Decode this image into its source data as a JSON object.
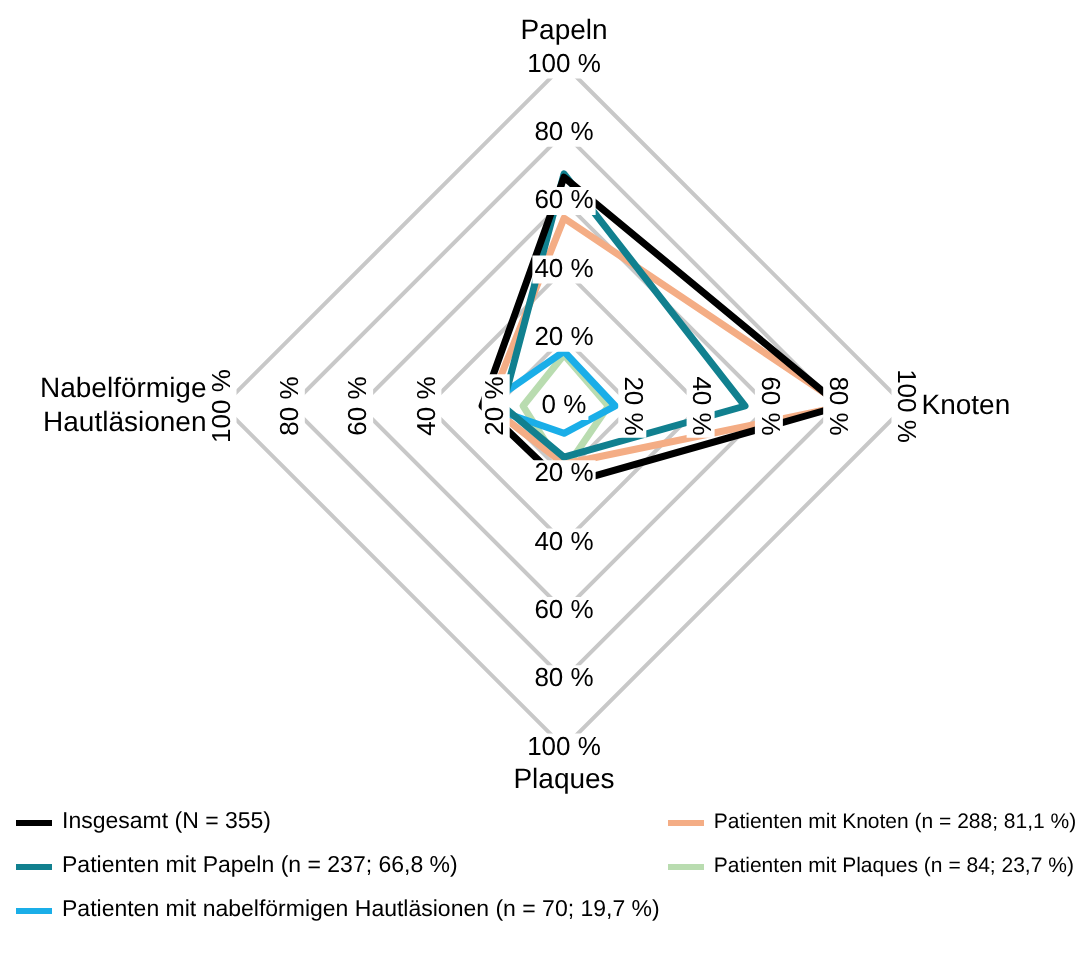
{
  "chart_data": {
    "type": "radar",
    "categories": [
      "Papeln",
      "Knoten",
      "Plaques",
      "Nabelförmige Hautläsionen"
    ],
    "series": [
      {
        "name": "Insgesamt (N = 355)",
        "color": "#000000",
        "values": [
          67,
          81,
          23,
          24
        ]
      },
      {
        "name": "Patienten mit Papeln (n = 237; 66,8 %)",
        "color": "#11808f",
        "values": [
          68,
          53,
          15,
          18
        ]
      },
      {
        "name": "Patienten mit nabelförmigen Hautläsionen (n = 70; 19,7 %)",
        "color": "#1aaee8",
        "values": [
          16,
          15,
          8,
          23
        ]
      },
      {
        "name": "Patienten mit Knoten (n = 288; 81,1 %)",
        "color": "#f4ad85",
        "values": [
          55,
          82,
          17,
          22
        ]
      },
      {
        "name": "Patienten mit Plaques (n = 84; 23,7 %)",
        "color": "#b9dcb0",
        "values": [
          15,
          13,
          19,
          12
        ]
      }
    ],
    "ylim": [
      0,
      100
    ],
    "yticks": [
      {
        "value": 0,
        "label": "0 %"
      },
      {
        "value": 20,
        "label": "20 %"
      },
      {
        "value": 40,
        "label": "40 %"
      },
      {
        "value": 60,
        "label": "60 %"
      },
      {
        "value": 80,
        "label": "80 %"
      },
      {
        "value": 100,
        "label": "100 %"
      }
    ],
    "grid": true,
    "legend": "bottom",
    "line_style": "solid",
    "marker": "none"
  }
}
